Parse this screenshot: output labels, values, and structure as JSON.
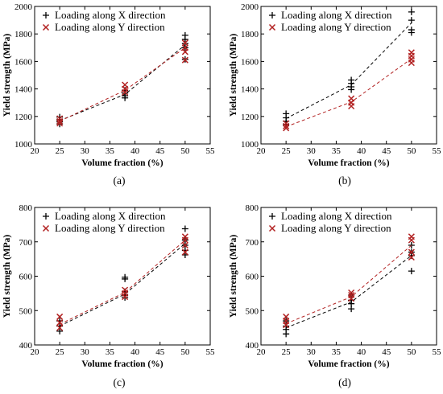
{
  "colors": {
    "x_series": "#000000",
    "y_series": "#b22222",
    "axes": "#000000"
  },
  "chart_data": [
    {
      "type": "scatter",
      "panel_label": "(a)",
      "xlabel": "Volume fraction (%)",
      "ylabel": "Yield strength (MPa)",
      "xlim": [
        20,
        55
      ],
      "ylim": [
        1000,
        2000
      ],
      "xticks": [
        20,
        25,
        30,
        35,
        40,
        45,
        50,
        55
      ],
      "yticks": [
        1000,
        1200,
        1400,
        1600,
        1800,
        2000
      ],
      "grid": false,
      "legend_position": "top-left",
      "series": [
        {
          "name": "Loading along X direction",
          "marker": "plus",
          "color": "#000000",
          "points": [
            [
              25,
              1195
            ],
            [
              25,
              1175
            ],
            [
              25,
              1160
            ],
            [
              25,
              1145
            ],
            [
              38,
              1390
            ],
            [
              38,
              1370
            ],
            [
              38,
              1350
            ],
            [
              38,
              1335
            ],
            [
              50,
              1790
            ],
            [
              50,
              1760
            ],
            [
              50,
              1730
            ],
            [
              50,
              1700
            ],
            [
              50,
              1615
            ]
          ],
          "trend_x": [
            25,
            38,
            50
          ],
          "trend_y": [
            1170,
            1360,
            1720
          ]
        },
        {
          "name": "Loading along Y direction",
          "marker": "cross",
          "color": "#b22222",
          "points": [
            [
              25,
              1185
            ],
            [
              25,
              1165
            ],
            [
              25,
              1150
            ],
            [
              38,
              1430
            ],
            [
              38,
              1400
            ],
            [
              38,
              1375
            ],
            [
              50,
              1735
            ],
            [
              50,
              1700
            ],
            [
              50,
              1670
            ],
            [
              50,
              1610
            ]
          ],
          "trend_x": [
            25,
            38,
            50
          ],
          "trend_y": [
            1165,
            1390,
            1700
          ]
        }
      ]
    },
    {
      "type": "scatter",
      "panel_label": "(b)",
      "xlabel": "Volume fraction (%)",
      "ylabel": "Yield strength (MPa)",
      "xlim": [
        20,
        55
      ],
      "ylim": [
        1000,
        2000
      ],
      "xticks": [
        20,
        25,
        30,
        35,
        40,
        45,
        50,
        55
      ],
      "yticks": [
        1000,
        1200,
        1400,
        1600,
        1800,
        2000
      ],
      "grid": false,
      "legend_position": "top-left",
      "series": [
        {
          "name": "Loading along X direction",
          "marker": "plus",
          "color": "#000000",
          "points": [
            [
              25,
              1220
            ],
            [
              25,
              1190
            ],
            [
              25,
              1165
            ],
            [
              25,
              1140
            ],
            [
              38,
              1465
            ],
            [
              38,
              1440
            ],
            [
              38,
              1415
            ],
            [
              38,
              1395
            ],
            [
              50,
              1960
            ],
            [
              50,
              1900
            ],
            [
              50,
              1830
            ],
            [
              50,
              1810
            ]
          ],
          "trend_x": [
            25,
            38,
            50
          ],
          "trend_y": [
            1185,
            1430,
            1880
          ]
        },
        {
          "name": "Loading along Y direction",
          "marker": "cross",
          "color": "#b22222",
          "points": [
            [
              25,
              1150
            ],
            [
              25,
              1130
            ],
            [
              25,
              1115
            ],
            [
              38,
              1330
            ],
            [
              38,
              1300
            ],
            [
              38,
              1275
            ],
            [
              50,
              1665
            ],
            [
              50,
              1640
            ],
            [
              50,
              1615
            ],
            [
              50,
              1590
            ]
          ],
          "trend_x": [
            25,
            38,
            50
          ],
          "trend_y": [
            1125,
            1305,
            1620
          ]
        }
      ]
    },
    {
      "type": "scatter",
      "panel_label": "(c)",
      "xlabel": "Volume fraction (%)",
      "ylabel": "Yield strength (MPa)",
      "xlim": [
        20,
        55
      ],
      "ylim": [
        400,
        800
      ],
      "xticks": [
        20,
        25,
        30,
        35,
        40,
        45,
        50,
        55
      ],
      "yticks": [
        400,
        500,
        600,
        700,
        800
      ],
      "grid": false,
      "legend_position": "top-left",
      "series": [
        {
          "name": "Loading along X direction",
          "marker": "plus",
          "color": "#000000",
          "points": [
            [
              25,
              470
            ],
            [
              25,
              455
            ],
            [
              25,
              440
            ],
            [
              38,
              597
            ],
            [
              38,
              592
            ],
            [
              38,
              555
            ],
            [
              38,
              545
            ],
            [
              38,
              538
            ],
            [
              50,
              738
            ],
            [
              50,
              705
            ],
            [
              50,
              690
            ],
            [
              50,
              675
            ],
            [
              50,
              662
            ]
          ],
          "trend_x": [
            25,
            38,
            50
          ],
          "trend_y": [
            455,
            548,
            695
          ]
        },
        {
          "name": "Loading along Y direction",
          "marker": "cross",
          "color": "#b22222",
          "points": [
            [
              25,
              482
            ],
            [
              25,
              465
            ],
            [
              25,
              450
            ],
            [
              38,
              560
            ],
            [
              38,
              550
            ],
            [
              38,
              540
            ],
            [
              50,
              715
            ],
            [
              50,
              705
            ],
            [
              50,
              690
            ],
            [
              50,
              670
            ]
          ],
          "trend_x": [
            25,
            38,
            50
          ],
          "trend_y": [
            460,
            553,
            705
          ]
        }
      ]
    },
    {
      "type": "scatter",
      "panel_label": "(d)",
      "xlabel": "Volume fraction (%)",
      "ylabel": "Yield strength (MPa)",
      "xlim": [
        20,
        55
      ],
      "ylim": [
        400,
        800
      ],
      "xticks": [
        20,
        25,
        30,
        35,
        40,
        45,
        50,
        55
      ],
      "yticks": [
        400,
        500,
        600,
        700,
        800
      ],
      "grid": false,
      "legend_position": "top-left",
      "series": [
        {
          "name": "Loading along X direction",
          "marker": "plus",
          "color": "#000000",
          "points": [
            [
              25,
              470
            ],
            [
              25,
              455
            ],
            [
              25,
              445
            ],
            [
              25,
              432
            ],
            [
              38,
              545
            ],
            [
              38,
              530
            ],
            [
              38,
              520
            ],
            [
              38,
              505
            ],
            [
              50,
              690
            ],
            [
              50,
              670
            ],
            [
              50,
              660
            ],
            [
              50,
              615
            ]
          ],
          "trend_x": [
            25,
            38,
            50
          ],
          "trend_y": [
            450,
            525,
            660
          ]
        },
        {
          "name": "Loading along Y direction",
          "marker": "cross",
          "color": "#b22222",
          "points": [
            [
              25,
              482
            ],
            [
              25,
              470
            ],
            [
              25,
              458
            ],
            [
              38,
              552
            ],
            [
              38,
              545
            ],
            [
              38,
              535
            ],
            [
              50,
              715
            ],
            [
              50,
              705
            ],
            [
              50,
              670
            ],
            [
              50,
              655
            ]
          ],
          "trend_x": [
            25,
            38,
            50
          ],
          "trend_y": [
            462,
            540,
            690
          ]
        }
      ]
    }
  ]
}
